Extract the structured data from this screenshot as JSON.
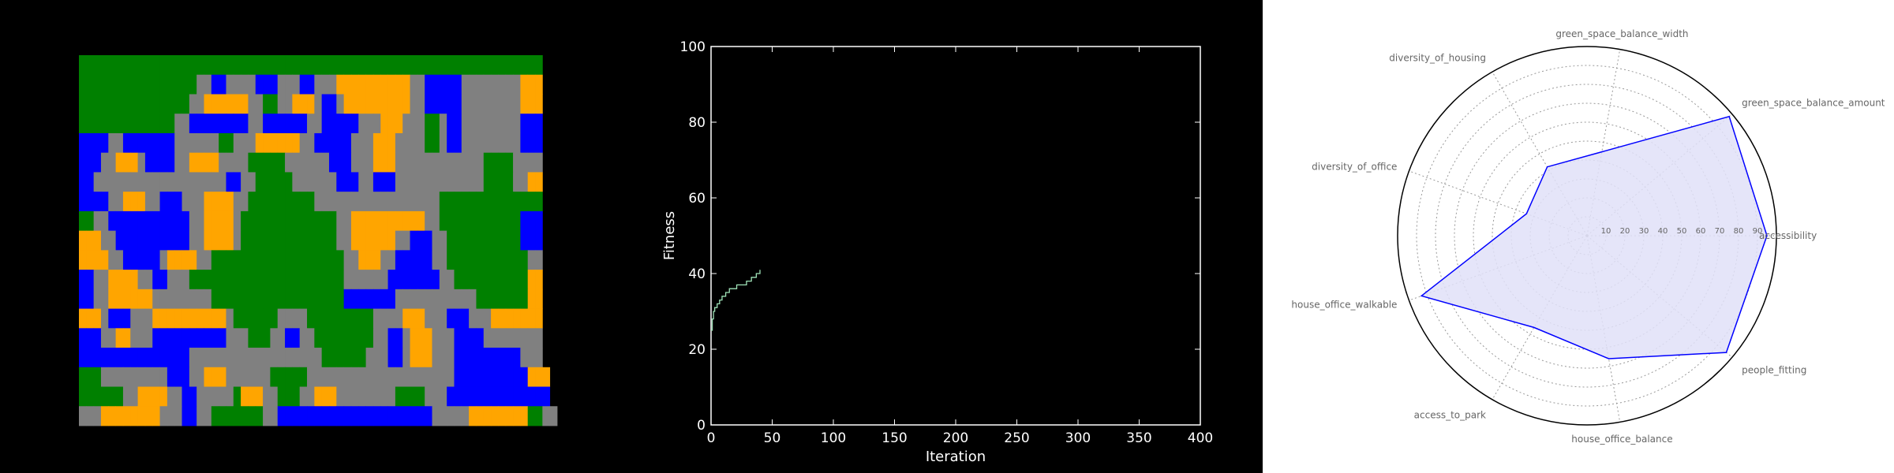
{
  "chart_data": [
    {
      "type": "heatmap",
      "grid": [
        "GGGGGGGGGGGGGGGGGGGGGGGGGGGGGGGGGGGGGGGGGGGGGGGGGGGGGGGGGGGGGGG",
        "GGGGGGGGGGGGGGGGNNBBNNNNBBBNNNBBNNNOOOOOOOOOONNBBBBBNNNNNNNNOOO",
        "GGGGGGGGGGGGGGGNNOOOOOONNGGNNOOONBBNOOOOOOOOONNBBBBBNNNNNNNNOOO",
        "GGGGGGGGGGGGGNNBBBBBBBBNNBBBBBBNNBBBBBNNNOOONNNGGNBBNNNNNNNNBBB",
        "BBBBNNBBBBBBBNNNNNNGGNNNOOOOOONNBBBBBNNNOOONNNNGGNBBNNNNNNNNBBB",
        "BBBNNOOONBBBBNNOOOONNNNGGGGGNNNNNNBBBNNNOOONNNNNNNNNNNNGGGGNNNN",
        "BBNNNNNNNNNNNNNNNNNNBBNNGGGGGNNNNNNBBBNNBBBNNNNNNNNNNNNGGGGNNOO",
        "BBBBNNOOONNBBBNNNOOOONNGGGGGGGGGNNNNNNNNNNNNNNNNNGGGGGGGGGGGGGG",
        "GGNNBBBBBBBBBBBNNOOOONGGGGGGGGGGGGGNNOOOOOOOOOONNGGGGGGGGGGGBBB",
        "OOONNBBBBBBBBBBNNOOOONGGGGGGGGGGGGGNNOOOOOONNBBBNNGGGGGGGGGGBBB",
        "OOOONNBBBBBNOOOONNGGGGGGGGGGGGGGGGGGNNOOONNBBBBBNNGGGGGGGGGGGNN",
        "BBNNOOOONNBBNNNGGGGGGGGGGGGGGGGGGGGGNNNNNNBBBBBBBNNGGGGGGGGGGOO",
        "BBNNOOOOOONNNNNNNNGGGGGGGGGGGGGGGGGGBBBBBBBNNNNNNNNNNNGGGGGGGOO",
        "OOONBBBNNNOOOOOOOOOONGGGGGGNNNNGGGGGGGGGNNNNOOONNNBBBNNNOOOOOOO",
        "BBBNNOONNNBBBBBBBBBBNNNGGGNNBBNNGGGGGGGGNNBBNOOONNNBBBBNNNNNNNN",
        "BBBBBBBBBBBBBBBNNNNNNNNNNNNNNNNNNGGGGGGNNNBBNOOONNNBBBBBBBBBNNN",
        "GGGNNNNNNNNNBBBNNOOONNNNNNGGGGGNNNNNNNNNNNNNNNNNNNNBBBBBBBBBBOOO",
        "GGGGGGNNOOOONNBBNNNNNGOOONNGGGNNOOONNNNNNNNGGGGNNNBBBBBBBBBBBBBB",
        "NNNOOOOOOOONNNBBNNGGGGGGGNNBBBBBBBBBBBBBBBBBBBBBNNNNNOOOOOOOOGGNN"
      ],
      "legend": {
        "G": "#008000",
        "B": "#0000ff",
        "O": "#ffa500",
        "N": "#808080"
      }
    },
    {
      "type": "line",
      "xlabel": "Iteration",
      "ylabel": "Fitness",
      "xlim": [
        0,
        400
      ],
      "ylim": [
        0,
        100
      ],
      "xticks": [
        "0",
        "50",
        "100",
        "150",
        "200",
        "250",
        "300",
        "350",
        "400"
      ],
      "yticks": [
        "0",
        "20",
        "40",
        "60",
        "80",
        "100"
      ],
      "line_color": "#9fe3b8",
      "x": [
        0,
        1,
        2,
        3,
        4,
        5,
        6,
        7,
        8,
        9,
        10,
        11,
        12,
        13,
        14,
        15,
        16,
        17,
        18,
        19,
        20,
        21,
        22,
        23,
        24,
        25,
        26,
        27,
        28,
        29,
        30,
        31,
        32,
        33,
        34,
        35,
        36,
        37,
        38,
        39,
        40
      ],
      "y": [
        25,
        28,
        30,
        31,
        31,
        32,
        32,
        33,
        33,
        34,
        34,
        34,
        35,
        35,
        35,
        36,
        36,
        36,
        36,
        36,
        36,
        37,
        37,
        37,
        37,
        37,
        37,
        37,
        37,
        38,
        38,
        38,
        38,
        39,
        39,
        39,
        39,
        40,
        40,
        40,
        41
      ]
    },
    {
      "type": "radar",
      "categories": [
        "accessibility",
        "green_space_balance_amount",
        "green_space_balance_width",
        "diversity_of_housing",
        "diversity_of_office",
        "house_office_walkable",
        "access_to_park",
        "house_office_balance",
        "people_fitting"
      ],
      "rticks": [
        "10",
        "20",
        "30",
        "40",
        "50",
        "60",
        "70",
        "80",
        "90"
      ],
      "rmax": 100,
      "values": [
        95,
        98,
        45,
        42,
        34,
        93,
        56,
        66,
        96
      ],
      "stroke_color": "#0000ff",
      "fill_color": "#e0e0f8"
    }
  ]
}
